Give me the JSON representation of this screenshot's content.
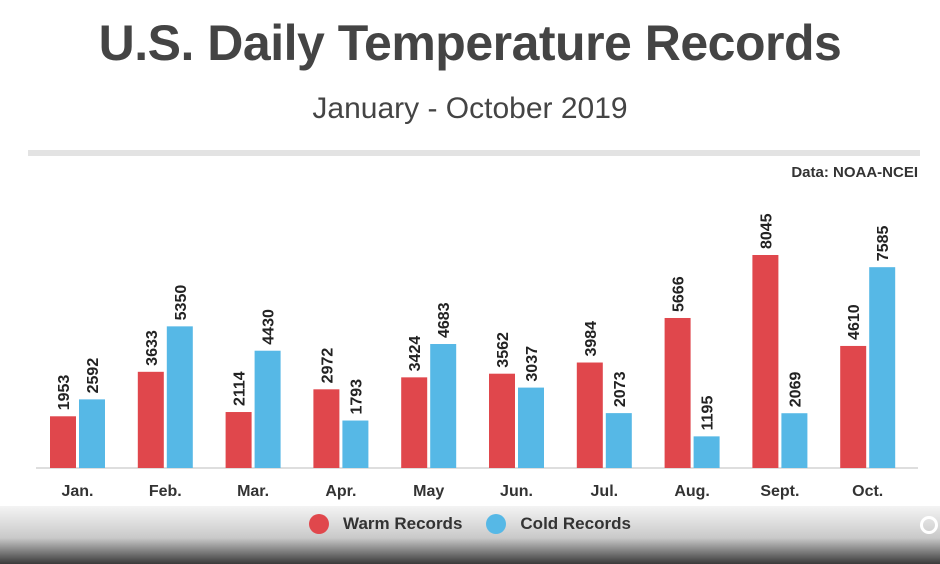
{
  "header": {
    "title": "U.S. Daily Temperature Records",
    "subtitle": "January - October 2019",
    "source": "Data: NOAA-NCEI"
  },
  "colors": {
    "warm": "#e0474c",
    "cold": "#56b8e6",
    "axis": "#bdbdbd",
    "label": "#222222"
  },
  "chart_data": {
    "type": "bar",
    "title": "U.S. Daily Temperature Records",
    "subtitle": "January - October 2019",
    "categories": [
      "Jan.",
      "Feb.",
      "Mar.",
      "Apr.",
      "May",
      "Jun.",
      "Jul.",
      "Aug.",
      "Sept.",
      "Oct."
    ],
    "series": [
      {
        "name": "Warm Records",
        "color": "#e0474c",
        "values": [
          1953,
          3633,
          2114,
          2972,
          3424,
          3562,
          3984,
          5666,
          8045,
          4610
        ]
      },
      {
        "name": "Cold Records",
        "color": "#56b8e6",
        "values": [
          2592,
          5350,
          4430,
          1793,
          4683,
          3037,
          2073,
          1195,
          2069,
          7585
        ]
      }
    ],
    "ylim": [
      0,
      8045
    ],
    "grid": false,
    "legend_position": "bottom-center",
    "data_labels": true
  }
}
